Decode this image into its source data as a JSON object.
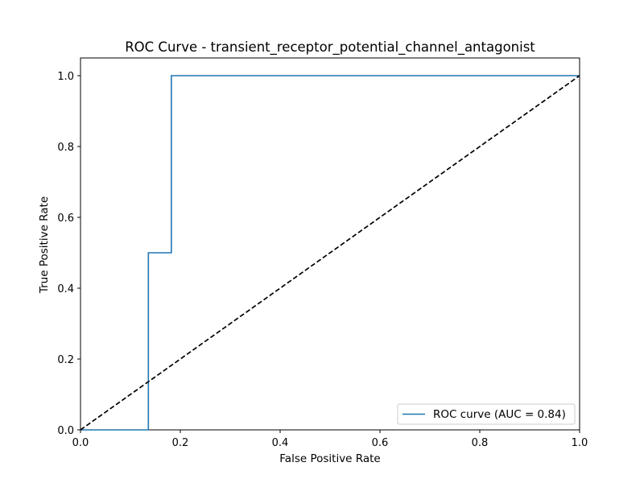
{
  "chart_data": {
    "type": "line",
    "title": "ROC Curve - transient_receptor_potential_channel_antagonist",
    "xlabel": "False Positive Rate",
    "ylabel": "True Positive Rate",
    "xlim": [
      0.0,
      1.0
    ],
    "ylim": [
      0.0,
      1.05
    ],
    "x_ticks": [
      "0.0",
      "0.2",
      "0.4",
      "0.6",
      "0.8",
      "1.0"
    ],
    "y_ticks": [
      "0.0",
      "0.2",
      "0.4",
      "0.6",
      "0.8",
      "1.0"
    ],
    "grid": false,
    "legend_position": "lower-right",
    "series": [
      {
        "name": "ROC curve (AUC = 0.84)",
        "color": "#1f77b4",
        "style": "solid-step",
        "x": [
          0.0,
          0.136,
          0.136,
          0.182,
          0.182,
          1.0
        ],
        "y": [
          0.0,
          0.0,
          0.5,
          0.5,
          1.0,
          1.0
        ]
      },
      {
        "color": "#000000",
        "style": "dashed",
        "x": [
          0.0,
          1.0
        ],
        "y": [
          0.0,
          1.0
        ]
      }
    ]
  }
}
